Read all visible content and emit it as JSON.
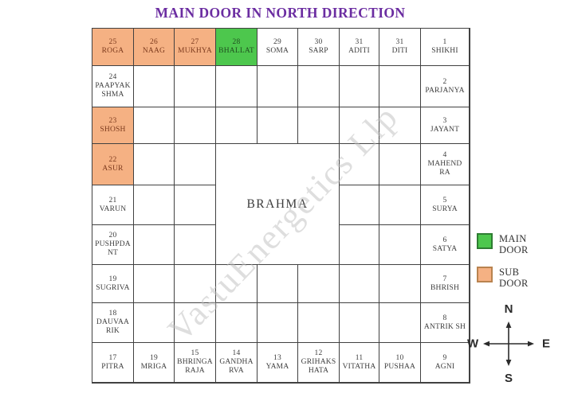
{
  "title": "MAIN DOOR IN NORTH DIRECTION",
  "watermark": "VastuEnergetics Llp",
  "colors": {
    "main_door_fill": "#4dc74d",
    "main_door_border": "#2e7d32",
    "sub_door_fill": "#f5b183",
    "sub_door_border": "#b9834f",
    "title_text": "#6b2da1",
    "grid_line": "#414141"
  },
  "brahma": {
    "label": "BRAHMA"
  },
  "cells": [
    {
      "row": 1,
      "col": 1,
      "num": "25",
      "name": "ROGA",
      "type": "sub"
    },
    {
      "row": 1,
      "col": 2,
      "num": "26",
      "name": "NAAG",
      "type": "sub"
    },
    {
      "row": 1,
      "col": 3,
      "num": "27",
      "name": "MUKHYA",
      "type": "sub"
    },
    {
      "row": 1,
      "col": 4,
      "num": "28",
      "name": "BHALLAT",
      "type": "main"
    },
    {
      "row": 1,
      "col": 5,
      "num": "29",
      "name": "SOMA",
      "type": "plain"
    },
    {
      "row": 1,
      "col": 6,
      "num": "30",
      "name": "SARP",
      "type": "plain"
    },
    {
      "row": 1,
      "col": 7,
      "num": "31",
      "name": "ADITI",
      "type": "plain"
    },
    {
      "row": 1,
      "col": 8,
      "num": "31",
      "name": "DITI",
      "type": "plain"
    },
    {
      "row": 1,
      "col": 9,
      "num": "1",
      "name": "SHIKHI",
      "type": "plain"
    },
    {
      "row": 2,
      "col": 1,
      "num": "24",
      "name": "PAAPYAK SHMA",
      "type": "plain"
    },
    {
      "row": 3,
      "col": 1,
      "num": "23",
      "name": "SHOSH",
      "type": "sub"
    },
    {
      "row": 4,
      "col": 1,
      "num": "22",
      "name": "ASUR",
      "type": "sub"
    },
    {
      "row": 5,
      "col": 1,
      "num": "21",
      "name": "VARUN",
      "type": "plain"
    },
    {
      "row": 6,
      "col": 1,
      "num": "20",
      "name": "PUSHPDA NT",
      "type": "plain"
    },
    {
      "row": 7,
      "col": 1,
      "num": "19",
      "name": "SUGRIVA",
      "type": "plain"
    },
    {
      "row": 8,
      "col": 1,
      "num": "18",
      "name": "DAUVAA RIK",
      "type": "plain"
    },
    {
      "row": 2,
      "col": 9,
      "num": "2",
      "name": "PARJANYA",
      "type": "plain"
    },
    {
      "row": 3,
      "col": 9,
      "num": "3",
      "name": "JAYANT",
      "type": "plain"
    },
    {
      "row": 4,
      "col": 9,
      "num": "4",
      "name": "MAHEND RA",
      "type": "plain"
    },
    {
      "row": 5,
      "col": 9,
      "num": "5",
      "name": "SURYA",
      "type": "plain"
    },
    {
      "row": 6,
      "col": 9,
      "num": "6",
      "name": "SATYA",
      "type": "plain"
    },
    {
      "row": 7,
      "col": 9,
      "num": "7",
      "name": "BHRISH",
      "type": "plain"
    },
    {
      "row": 8,
      "col": 9,
      "num": "8",
      "name": "ANTRIK SH",
      "type": "plain"
    },
    {
      "row": 9,
      "col": 1,
      "num": "17",
      "name": "PITRA",
      "type": "plain"
    },
    {
      "row": 9,
      "col": 2,
      "num": "19",
      "name": "MRIGA",
      "type": "plain"
    },
    {
      "row": 9,
      "col": 3,
      "num": "15",
      "name": "BHRINGA RAJA",
      "type": "plain"
    },
    {
      "row": 9,
      "col": 4,
      "num": "14",
      "name": "GANDHA RVA",
      "type": "plain"
    },
    {
      "row": 9,
      "col": 5,
      "num": "13",
      "name": "YAMA",
      "type": "plain"
    },
    {
      "row": 9,
      "col": 6,
      "num": "12",
      "name": "GRIHAKS HATA",
      "type": "plain"
    },
    {
      "row": 9,
      "col": 7,
      "num": "11",
      "name": "VITATHA",
      "type": "plain"
    },
    {
      "row": 9,
      "col": 8,
      "num": "10",
      "name": "PUSHAA",
      "type": "plain"
    },
    {
      "row": 9,
      "col": 9,
      "num": "9",
      "name": "AGNI",
      "type": "plain"
    }
  ],
  "legend": [
    {
      "label": "MAIN DOOR",
      "swatch": "main"
    },
    {
      "label": "SUB DOOR",
      "swatch": "sub"
    }
  ],
  "compass": {
    "north": "N",
    "south": "S",
    "east": "E",
    "west": "W"
  }
}
